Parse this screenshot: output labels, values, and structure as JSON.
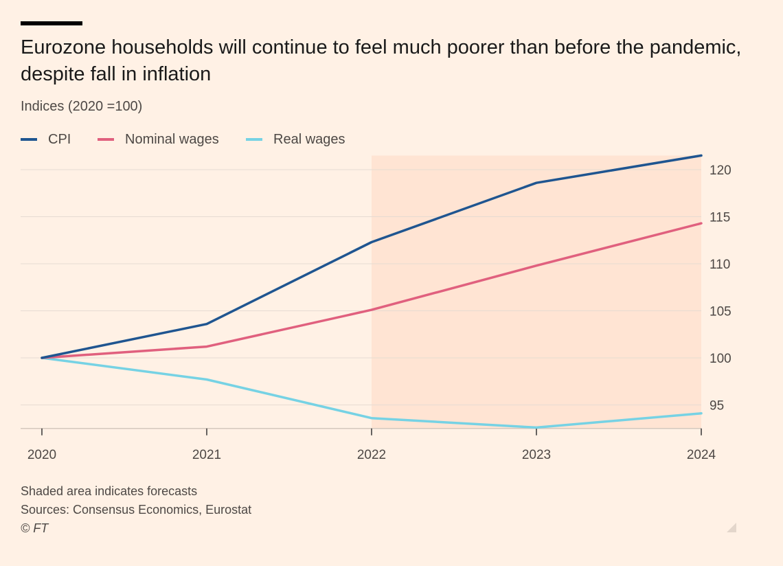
{
  "title": "Eurozone households will continue to feel much poorer than before the pandemic, despite fall in inflation",
  "subtitle": "Indices (2020 =100)",
  "footer": {
    "note": "Shaded area indicates forecasts",
    "sources": "Sources: Consensus Economics, Eurostat",
    "copyright": "© FT"
  },
  "colors": {
    "background": "#fff1e5",
    "forecast_shade": "#ffe4d3",
    "cpi": "#1f5590",
    "nominal_wages": "#e0607e",
    "real_wages": "#76d2e4",
    "grid": "#e6dbd2",
    "axis": "#333333",
    "tick_text": "#4d4845"
  },
  "chart_data": {
    "type": "line",
    "x": [
      2020,
      2021,
      2022,
      2023,
      2024
    ],
    "x_tick_labels": [
      "2020",
      "2021",
      "2022",
      "2023",
      "2024"
    ],
    "y_tick_labels": [
      "95",
      "100",
      "105",
      "110",
      "115",
      "120"
    ],
    "ylim": [
      92.5,
      121.5
    ],
    "y_axis_side": "right",
    "forecast_range": [
      2022,
      2024
    ],
    "grid": "horizontal",
    "legend_position": "top-left",
    "series": [
      {
        "name": "CPI",
        "color": "#1f5590",
        "values": [
          100,
          103.6,
          112.3,
          118.6,
          121.5
        ]
      },
      {
        "name": "Nominal wages",
        "color": "#e0607e",
        "values": [
          100,
          101.2,
          105.1,
          109.8,
          114.3
        ]
      },
      {
        "name": "Real wages",
        "color": "#76d2e4",
        "values": [
          100,
          97.7,
          93.6,
          92.6,
          94.1
        ]
      }
    ]
  }
}
